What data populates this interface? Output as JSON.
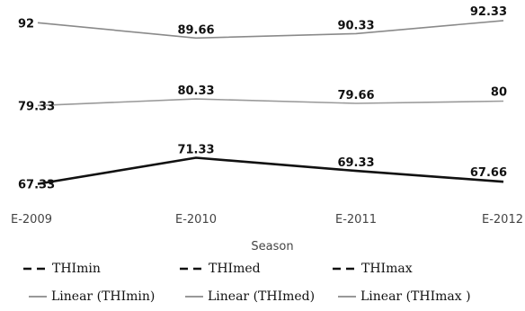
{
  "chart_data": {
    "type": "line",
    "title": "",
    "xlabel": "Season",
    "ylabel": "",
    "categories": [
      "E-2009",
      "E-2010",
      "E-2011",
      "E-2012"
    ],
    "ylim": [
      67,
      93
    ],
    "grid": false,
    "legend_position": "bottom",
    "series": [
      {
        "name": "THImax",
        "values": [
          92,
          89.66,
          90.33,
          92.33
        ],
        "labels": [
          "92",
          "89.66",
          "90.33",
          "92.33"
        ],
        "color": "#8a8a8a",
        "width": 1.6
      },
      {
        "name": "THImed",
        "values": [
          79.33,
          80.33,
          79.66,
          80
        ],
        "labels": [
          "79.33",
          "80.33",
          "79.66",
          "80"
        ],
        "color": "#9a9a9a",
        "width": 1.6
      },
      {
        "name": "THImin",
        "values": [
          67.33,
          71.33,
          69.33,
          67.66
        ],
        "labels": [
          "67.33",
          "71.33",
          "69.33",
          "67.66"
        ],
        "color": "#111111",
        "width": 2.6
      }
    ],
    "legend": [
      {
        "text": "THImin",
        "style": "dashed"
      },
      {
        "text": "THImed",
        "style": "dashed"
      },
      {
        "text": "THImax",
        "style": "dashed"
      },
      {
        "text": "Linear (THImin)",
        "style": "solid"
      },
      {
        "text": "Linear (THImed)",
        "style": "solid"
      },
      {
        "text": "Linear (THImax )",
        "style": "solid"
      }
    ]
  }
}
